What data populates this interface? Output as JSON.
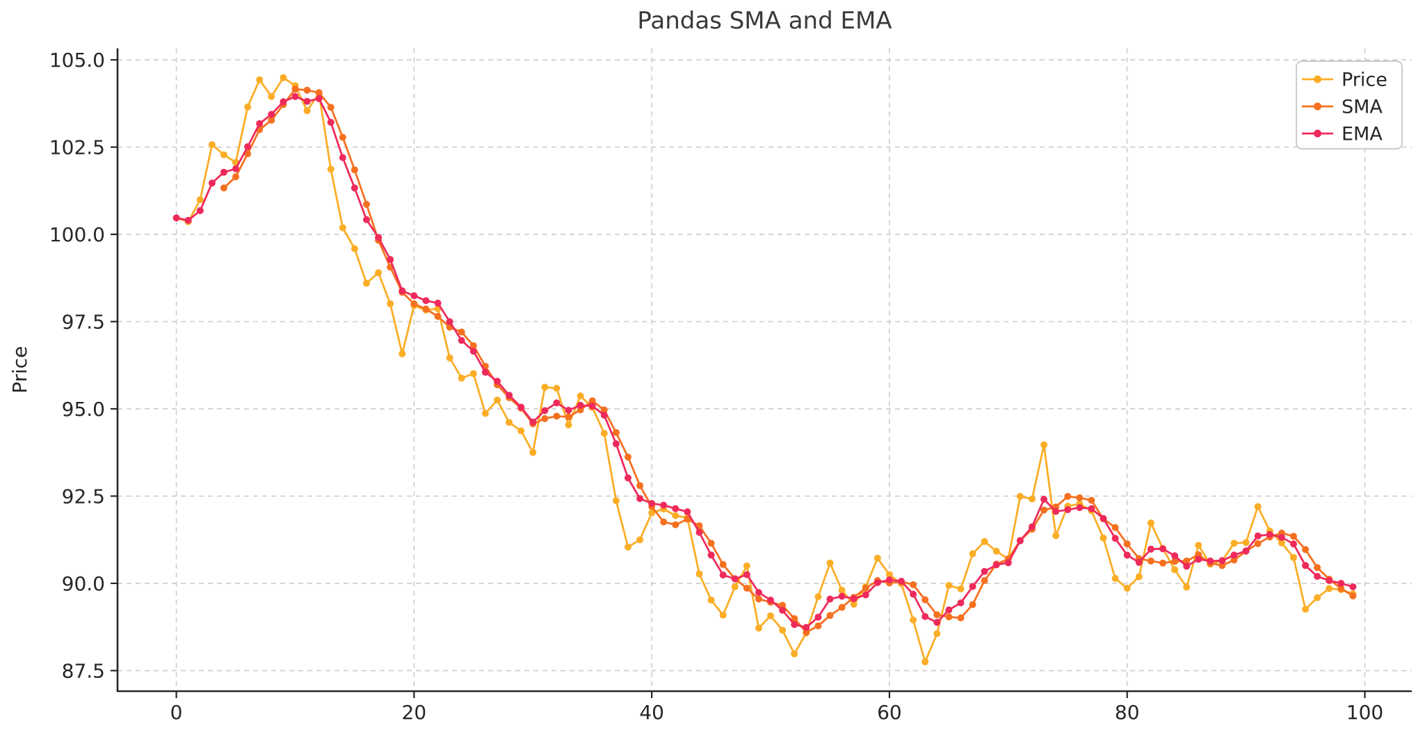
{
  "chart_data": {
    "type": "line",
    "title": "Pandas SMA and EMA",
    "xlabel": "",
    "ylabel": "Price",
    "grid": true,
    "grid_style": "dashed",
    "legend_position": "upper right",
    "xlim": [
      -4.95,
      103.95
    ],
    "ylim": [
      86.91,
      105.33
    ],
    "x_ticks": [
      0,
      20,
      40,
      60,
      80,
      100
    ],
    "x_tick_labels": [
      "0",
      "20",
      "40",
      "60",
      "80",
      "100"
    ],
    "y_ticks": [
      87.5,
      90.0,
      92.5,
      95.0,
      97.5,
      100.0,
      102.5,
      105.0
    ],
    "y_tick_labels": [
      "87.5",
      "90.0",
      "92.5",
      "95.0",
      "97.5",
      "100.0",
      "102.5",
      "105.0"
    ],
    "x": [
      0,
      1,
      2,
      3,
      4,
      5,
      6,
      7,
      8,
      9,
      10,
      11,
      12,
      13,
      14,
      15,
      16,
      17,
      18,
      19,
      20,
      21,
      22,
      23,
      24,
      25,
      26,
      27,
      28,
      29,
      30,
      31,
      32,
      33,
      34,
      35,
      36,
      37,
      38,
      39,
      40,
      41,
      42,
      43,
      44,
      45,
      46,
      47,
      48,
      49,
      50,
      51,
      52,
      53,
      54,
      55,
      56,
      57,
      58,
      59,
      60,
      61,
      62,
      63,
      64,
      65,
      66,
      67,
      68,
      69,
      70,
      71,
      72,
      73,
      74,
      75,
      76,
      77,
      78,
      79,
      80,
      81,
      82,
      83,
      84,
      85,
      86,
      87,
      88,
      89,
      90,
      91,
      92,
      93,
      94,
      95,
      96,
      97,
      98,
      99
    ],
    "series": [
      {
        "name": "Price",
        "color": "#FBAD26",
        "marker": "circle",
        "values": [
          100.47,
          100.36,
          100.99,
          102.57,
          102.28,
          102.06,
          103.65,
          104.43,
          103.95,
          104.49,
          104.26,
          103.54,
          104.04,
          101.87,
          100.19,
          99.59,
          98.6,
          98.9,
          98.01,
          96.58,
          97.96,
          97.83,
          97.87,
          96.46,
          95.88,
          96.01,
          94.87,
          95.25,
          94.61,
          94.37,
          93.75,
          95.62,
          95.59,
          94.54,
          95.37,
          95.04,
          94.3,
          92.37,
          91.04,
          91.25,
          92.02,
          92.13,
          91.94,
          91.88,
          90.27,
          89.52,
          89.09,
          89.9,
          90.5,
          88.72,
          89.07,
          88.66,
          87.98,
          88.58,
          89.62,
          90.58,
          89.8,
          89.4,
          89.9,
          90.72,
          90.25,
          89.99,
          88.95,
          87.75,
          88.56,
          89.94,
          89.84,
          90.85,
          91.2,
          90.92,
          90.7,
          92.49,
          92.42,
          93.97,
          91.37,
          92.21,
          92.28,
          92.08,
          91.3,
          90.14,
          89.86,
          90.19,
          91.73,
          91.0,
          90.39,
          89.89,
          91.09,
          90.55,
          90.65,
          91.15,
          91.17,
          92.2,
          91.5,
          91.16,
          90.74,
          89.26,
          89.59,
          89.85,
          89.82,
          89.7
        ]
      },
      {
        "name": "SMA",
        "color": "#F5701F",
        "marker": "circle",
        "derived_from": "rolling mean of Price, window 5",
        "values": [
          null,
          null,
          null,
          null,
          101.33,
          101.65,
          102.31,
          103.0,
          103.27,
          103.72,
          104.16,
          104.13,
          104.06,
          103.64,
          102.78,
          101.85,
          100.86,
          99.83,
          99.06,
          98.34,
          98.01,
          97.86,
          97.65,
          97.34,
          97.2,
          96.81,
          96.22,
          95.69,
          95.32,
          95.02,
          94.57,
          94.72,
          94.79,
          94.77,
          94.97,
          95.23,
          94.97,
          94.32,
          93.62,
          92.8,
          92.2,
          91.76,
          91.68,
          91.84,
          91.65,
          91.15,
          90.54,
          90.13,
          89.86,
          89.55,
          89.46,
          89.37,
          88.99,
          88.6,
          88.78,
          89.08,
          89.31,
          89.6,
          89.86,
          90.08,
          90.01,
          90.05,
          89.96,
          89.53,
          89.1,
          89.04,
          89.01,
          89.39,
          90.08,
          90.55,
          90.7,
          91.23,
          91.55,
          92.1,
          92.19,
          92.49,
          92.45,
          92.38,
          91.85,
          91.6,
          91.13,
          90.71,
          90.64,
          90.58,
          90.63,
          90.64,
          90.82,
          90.58,
          90.51,
          90.67,
          90.92,
          91.14,
          91.33,
          91.44,
          91.35,
          90.97,
          90.45,
          90.12,
          89.85,
          89.64
        ]
      },
      {
        "name": "EMA",
        "color": "#EE2A5B",
        "marker": "circle",
        "derived_from": "exponential weighted mean of Price, span 5",
        "values": [
          100.47,
          100.4,
          100.68,
          101.47,
          101.78,
          101.88,
          102.51,
          103.17,
          103.44,
          103.8,
          103.95,
          103.81,
          103.89,
          103.21,
          102.2,
          101.33,
          100.42,
          99.91,
          99.28,
          98.38,
          98.24,
          98.1,
          98.03,
          97.5,
          96.96,
          96.65,
          96.05,
          95.79,
          95.39,
          95.05,
          94.62,
          94.95,
          95.17,
          94.96,
          95.1,
          95.08,
          94.82,
          94.0,
          93.02,
          92.43,
          92.29,
          92.24,
          92.14,
          92.05,
          91.46,
          90.81,
          90.24,
          90.13,
          90.25,
          89.74,
          89.52,
          89.23,
          88.82,
          88.74,
          89.03,
          89.55,
          89.63,
          89.56,
          89.67,
          90.02,
          90.1,
          90.06,
          89.69,
          89.05,
          88.88,
          89.24,
          89.44,
          89.91,
          90.34,
          90.53,
          90.59,
          91.22,
          91.62,
          92.41,
          92.06,
          92.11,
          92.17,
          92.14,
          91.86,
          91.29,
          90.81,
          90.6,
          90.98,
          90.99,
          90.79,
          90.49,
          90.69,
          90.64,
          90.65,
          90.81,
          90.93,
          91.36,
          91.4,
          91.32,
          91.13,
          90.51,
          90.2,
          90.08,
          90.0,
          89.9
        ]
      }
    ],
    "colors": {
      "title": "#3a3a3a",
      "tick_label": "#262626",
      "axis_spine": "#262626",
      "gridline": "#cccccc",
      "legend_border": "#cbcbcb",
      "background": "#ffffff"
    }
  }
}
